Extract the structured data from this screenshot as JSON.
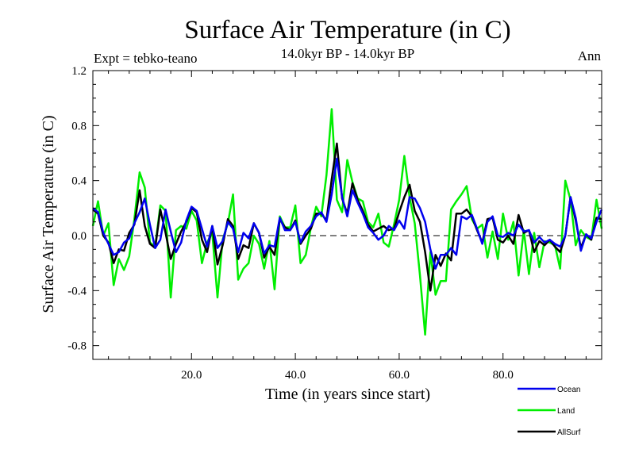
{
  "chart_data": {
    "type": "line",
    "title": "Surface Air Temperature (in C)",
    "subtitle": "14.0kyr BP - 14.0kyr BP",
    "left_note": "Expt = tebko-teano",
    "right_note": "Ann",
    "xlabel": "Time (in years since start)",
    "ylabel": "Surface Air Temperature (in C)",
    "xlim": [
      1,
      99
    ],
    "ylim": [
      -0.9,
      1.2
    ],
    "xticks": [
      20,
      40,
      60,
      80
    ],
    "xtick_labels": [
      "20.0",
      "40.0",
      "60.0",
      "80.0"
    ],
    "yticks": [
      -0.8,
      -0.4,
      0.0,
      0.4,
      0.8,
      1.2
    ],
    "ytick_labels": [
      "-0.8",
      "-0.4",
      "0.0",
      "0.4",
      "0.8",
      "1.2"
    ],
    "reference_line": 0.0,
    "legend_position": "bottom-right",
    "x": [
      1,
      2,
      3,
      4,
      5,
      6,
      7,
      8,
      9,
      10,
      11,
      12,
      13,
      14,
      15,
      16,
      17,
      18,
      19,
      20,
      21,
      22,
      23,
      24,
      25,
      26,
      27,
      28,
      29,
      30,
      31,
      32,
      33,
      34,
      35,
      36,
      37,
      38,
      39,
      40,
      41,
      42,
      43,
      44,
      45,
      46,
      47,
      48,
      49,
      50,
      51,
      52,
      53,
      54,
      55,
      56,
      57,
      58,
      59,
      60,
      61,
      62,
      63,
      64,
      65,
      66,
      67,
      68,
      69,
      70,
      71,
      72,
      73,
      74,
      75,
      76,
      77,
      78,
      79,
      80,
      81,
      82,
      83,
      84,
      85,
      86,
      87,
      88,
      89,
      90,
      91,
      92,
      93,
      94,
      95,
      96,
      97,
      98,
      99
    ],
    "series": [
      {
        "name": "Ocean",
        "color": "#0000ee",
        "values": [
          0.2,
          0.17,
          0.02,
          -0.06,
          -0.14,
          -0.12,
          -0.05,
          -0.02,
          0.09,
          0.17,
          0.27,
          0.08,
          -0.09,
          -0.03,
          0.19,
          0.03,
          -0.12,
          -0.05,
          0.11,
          0.21,
          0.18,
          0.05,
          -0.08,
          0.07,
          -0.09,
          -0.04,
          0.1,
          0.05,
          -0.12,
          0.02,
          -0.02,
          0.09,
          0.02,
          -0.13,
          -0.07,
          -0.08,
          0.13,
          0.04,
          0.04,
          0.1,
          -0.05,
          0.03,
          0.07,
          0.14,
          0.17,
          0.1,
          0.3,
          0.56,
          0.28,
          0.14,
          0.33,
          0.24,
          0.16,
          0.06,
          0.02,
          -0.03,
          0.0,
          0.07,
          0.04,
          0.11,
          0.05,
          0.28,
          0.27,
          0.2,
          0.1,
          -0.1,
          -0.24,
          -0.14,
          -0.14,
          -0.09,
          -0.14,
          0.14,
          0.12,
          0.15,
          0.05,
          -0.06,
          0.1,
          0.14,
          0.0,
          -0.01,
          0.02,
          0.0,
          0.08,
          0.03,
          0.04,
          -0.05,
          -0.01,
          -0.05,
          -0.03,
          -0.06,
          -0.08,
          0.0,
          0.28,
          0.13,
          -0.11,
          0.01,
          -0.02,
          0.1,
          0.19
        ]
      },
      {
        "name": "Land",
        "color": "#00ee00",
        "values": [
          0.07,
          0.25,
          0.0,
          0.09,
          -0.36,
          -0.17,
          -0.25,
          -0.15,
          0.12,
          0.46,
          0.35,
          -0.05,
          -0.08,
          0.22,
          0.18,
          -0.45,
          0.04,
          0.07,
          0.05,
          0.18,
          0.11,
          -0.2,
          -0.05,
          0.02,
          -0.45,
          -0.03,
          0.09,
          0.3,
          -0.32,
          -0.24,
          -0.2,
          0.0,
          -0.06,
          -0.24,
          -0.04,
          -0.39,
          0.14,
          0.06,
          0.06,
          0.22,
          -0.2,
          -0.14,
          0.06,
          0.21,
          0.14,
          0.44,
          0.92,
          0.26,
          0.17,
          0.55,
          0.39,
          0.27,
          0.25,
          0.1,
          0.06,
          0.16,
          -0.05,
          -0.08,
          0.08,
          0.26,
          0.58,
          0.28,
          0.09,
          -0.29,
          -0.72,
          -0.12,
          -0.43,
          -0.33,
          -0.33,
          0.19,
          0.25,
          0.3,
          0.36,
          0.12,
          0.05,
          0.08,
          -0.16,
          0.03,
          -0.17,
          0.16,
          -0.03,
          0.1,
          -0.29,
          0.04,
          -0.28,
          0.02,
          -0.23,
          -0.04,
          -0.05,
          -0.07,
          -0.24,
          0.4,
          0.26,
          -0.07,
          0.04,
          -0.01,
          -0.03,
          0.26,
          0.05
        ]
      },
      {
        "name": "AllSurf",
        "color": "#000000",
        "values": [
          0.19,
          0.16,
          0.0,
          -0.05,
          -0.2,
          -0.1,
          -0.11,
          0.02,
          0.08,
          0.33,
          0.07,
          -0.06,
          -0.09,
          0.19,
          0.02,
          -0.17,
          -0.06,
          0.03,
          0.1,
          0.2,
          0.17,
          -0.03,
          -0.12,
          0.07,
          -0.21,
          -0.07,
          0.12,
          0.07,
          -0.17,
          -0.07,
          -0.09,
          0.09,
          0.02,
          -0.16,
          -0.08,
          -0.14,
          0.12,
          0.06,
          0.04,
          0.11,
          -0.06,
          0.0,
          0.05,
          0.16,
          0.16,
          0.11,
          0.41,
          0.67,
          0.27,
          0.16,
          0.38,
          0.26,
          0.18,
          0.08,
          0.03,
          0.05,
          0.07,
          0.04,
          0.05,
          0.17,
          0.28,
          0.37,
          0.18,
          0.1,
          -0.12,
          -0.4,
          -0.14,
          -0.22,
          -0.13,
          -0.18,
          0.16,
          0.16,
          0.19,
          0.14,
          0.04,
          -0.05,
          0.12,
          0.13,
          -0.03,
          -0.05,
          0.0,
          -0.06,
          0.15,
          0.02,
          0.04,
          -0.12,
          -0.04,
          -0.07,
          -0.03,
          -0.08,
          -0.12,
          0.0,
          0.28,
          0.11,
          -0.09,
          0.01,
          -0.03,
          0.13,
          0.12
        ]
      }
    ]
  }
}
